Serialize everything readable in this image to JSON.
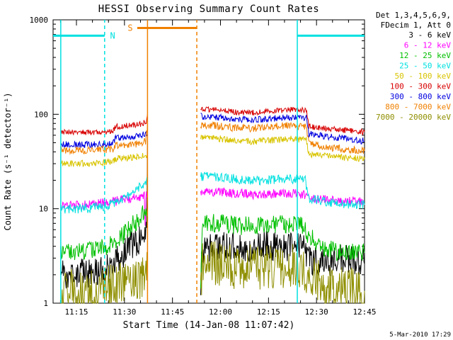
{
  "title": "HESSI Observing Summary Count Rates",
  "xlabel": "Start Time (14-Jan-08 11:07:42)",
  "ylabel": "Count Rate (s⁻¹ detector⁻¹)",
  "timestamp": "5-Mar-2010 17:29",
  "legend": {
    "header_line1": "Det 1,3,4,5,6,9,",
    "header_line2": "FDecim 1, Att 0",
    "entries": [
      {
        "label": "3 - 6 keV",
        "color": "#000000"
      },
      {
        "label": "6 - 12 keV",
        "color": "#FF00FF"
      },
      {
        "label": "12 - 25 keV",
        "color": "#00C000"
      },
      {
        "label": "25 - 50 keV",
        "color": "#00E0E0"
      },
      {
        "label": "50 - 100 keV",
        "color": "#D8C400"
      },
      {
        "label": "100 - 300 keV",
        "color": "#D80000"
      },
      {
        "label": "300 - 800 keV",
        "color": "#0000E0"
      },
      {
        "label": "800 - 7000 keV",
        "color": "#F08000"
      },
      {
        "label": "7000 - 20000 keV",
        "color": "#8E8E00"
      }
    ]
  },
  "chart_data": {
    "type": "line",
    "y_scale": "log",
    "x_axis": {
      "domain_min": 7.7,
      "domain_max": 105,
      "minor_tick_step_min": 5,
      "major_ticks": [
        {
          "x": 15,
          "label": "11:15"
        },
        {
          "x": 30,
          "label": "11:30"
        },
        {
          "x": 45,
          "label": "11:45"
        },
        {
          "x": 60,
          "label": "12:00"
        },
        {
          "x": 75,
          "label": "12:15"
        },
        {
          "x": 90,
          "label": "12:30"
        },
        {
          "x": 105,
          "label": "12:45"
        }
      ]
    },
    "y_axis": {
      "domain": [
        1,
        1000
      ],
      "major_ticks": [
        {
          "v": 1,
          "label": "1"
        },
        {
          "v": 10,
          "label": "10"
        },
        {
          "v": 100,
          "label": "100"
        },
        {
          "v": 1000,
          "label": "1000"
        }
      ]
    },
    "series": [
      {
        "name": "3 - 6 keV",
        "color": "#000000",
        "noise": 0.16,
        "segments": [
          [
            [
              10.2,
              2.0
            ],
            [
              15,
              2.1
            ],
            [
              22,
              2.1
            ],
            [
              26,
              2.4
            ],
            [
              29,
              3.2
            ],
            [
              32,
              4.2
            ],
            [
              35,
              4.8
            ],
            [
              36.9,
              5.2
            ],
            [
              37.2,
              55
            ]
          ],
          [
            [
              53.8,
              1.15
            ],
            [
              54.2,
              3.6
            ],
            [
              60,
              4.0
            ],
            [
              67,
              3.8
            ],
            [
              74,
              4.2
            ],
            [
              80,
              3.8
            ],
            [
              86,
              4.0
            ],
            [
              87,
              3.0
            ],
            [
              92,
              2.6
            ],
            [
              97,
              3.0
            ],
            [
              105,
              2.6
            ]
          ]
        ]
      },
      {
        "name": "6 - 12 keV",
        "color": "#FF00FF",
        "noise": 0.05,
        "segments": [
          [
            [
              10.2,
              11
            ],
            [
              18,
              11
            ],
            [
              24,
              11.5
            ],
            [
              27,
              12
            ],
            [
              30,
              12.5
            ],
            [
              34,
              13
            ],
            [
              36.2,
              13.5
            ],
            [
              36.45,
              6
            ],
            [
              36.7,
              13.8
            ],
            [
              37.2,
              14
            ]
          ],
          [
            [
              53.8,
              15.5
            ],
            [
              60,
              15
            ],
            [
              66,
              14.5
            ],
            [
              72,
              14
            ],
            [
              78,
              14.5
            ],
            [
              84,
              14.5
            ],
            [
              86.5,
              14
            ],
            [
              87.5,
              13
            ],
            [
              92,
              12.5
            ],
            [
              98,
              12
            ],
            [
              105,
              12
            ]
          ]
        ]
      },
      {
        "name": "12 - 25 keV",
        "color": "#00C000",
        "noise": 0.1,
        "segments": [
          [
            [
              10.2,
              3.6
            ],
            [
              18,
              3.6
            ],
            [
              24,
              3.9
            ],
            [
              27,
              4.5
            ],
            [
              30,
              5.5
            ],
            [
              33,
              7
            ],
            [
              35.5,
              8.5
            ],
            [
              37.2,
              10
            ]
          ],
          [
            [
              53.8,
              1.2
            ],
            [
              54.3,
              7.2
            ],
            [
              60,
              7.0
            ],
            [
              66,
              6.6
            ],
            [
              72,
              6.6
            ],
            [
              78,
              6.9
            ],
            [
              84,
              6.9
            ],
            [
              86.5,
              6.5
            ],
            [
              87.5,
              5.0
            ],
            [
              90,
              4.5
            ],
            [
              93,
              3.8
            ],
            [
              97,
              3.4
            ],
            [
              105,
              3.4
            ]
          ]
        ]
      },
      {
        "name": "25 - 50 keV",
        "color": "#00E0E0",
        "noise": 0.05,
        "segments": [
          [
            [
              10.2,
              10
            ],
            [
              18,
              10
            ],
            [
              24,
              10.5
            ],
            [
              27,
              11.5
            ],
            [
              30,
              13
            ],
            [
              33,
              15.5
            ],
            [
              35.5,
              17.5
            ],
            [
              37.2,
              20
            ]
          ],
          [
            [
              53.8,
              22
            ],
            [
              60,
              21.5
            ],
            [
              66,
              20.5
            ],
            [
              72,
              20
            ],
            [
              78,
              20.5
            ],
            [
              84,
              20.5
            ],
            [
              86.5,
              20
            ],
            [
              87.5,
              13
            ],
            [
              92,
              12
            ],
            [
              98,
              11.3
            ],
            [
              105,
              11
            ]
          ]
        ]
      },
      {
        "name": "50 - 100 keV",
        "color": "#D8C400",
        "noise": 0.035,
        "segments": [
          [
            [
              10.2,
              30.5
            ],
            [
              16,
              30
            ],
            [
              22,
              30.5
            ],
            [
              26.4,
              31.5
            ],
            [
              27.2,
              34
            ],
            [
              31,
              34.5
            ],
            [
              35,
              35.5
            ],
            [
              37.2,
              37
            ]
          ],
          [
            [
              53.8,
              57
            ],
            [
              58,
              56
            ],
            [
              64,
              53
            ],
            [
              70,
              51.5
            ],
            [
              76,
              53
            ],
            [
              82,
              55
            ],
            [
              86.8,
              54
            ],
            [
              87.6,
              38
            ],
            [
              92,
              36.5
            ],
            [
              98,
              35
            ],
            [
              105,
              33.5
            ]
          ]
        ]
      },
      {
        "name": "100 - 300 keV",
        "color": "#D80000",
        "noise": 0.03,
        "segments": [
          [
            [
              10.2,
              65
            ],
            [
              16,
              64
            ],
            [
              22,
              65
            ],
            [
              26.4,
              66
            ],
            [
              27.2,
              74
            ],
            [
              31,
              76
            ],
            [
              35,
              79
            ],
            [
              36.8,
              83
            ],
            [
              37.2,
              100
            ]
          ],
          [
            [
              53.8,
              113
            ],
            [
              58,
              112
            ],
            [
              64,
              106
            ],
            [
              70,
              104
            ],
            [
              76,
              108
            ],
            [
              82,
              112
            ],
            [
              86.8,
              110
            ],
            [
              87.6,
              74
            ],
            [
              92,
              71
            ],
            [
              98,
              68
            ],
            [
              105,
              65
            ]
          ]
        ]
      },
      {
        "name": "300 - 800 keV",
        "color": "#0000E0",
        "noise": 0.035,
        "segments": [
          [
            [
              10.2,
              48
            ],
            [
              16,
              47.5
            ],
            [
              22,
              48
            ],
            [
              26.4,
              49
            ],
            [
              27.2,
              56
            ],
            [
              31,
              57.5
            ],
            [
              35,
              59.5
            ],
            [
              37.2,
              63
            ]
          ],
          [
            [
              53.8,
              95
            ],
            [
              58,
              94
            ],
            [
              64,
              89
            ],
            [
              70,
              87
            ],
            [
              76,
              90
            ],
            [
              82,
              93
            ],
            [
              86.8,
              92
            ],
            [
              87.6,
              62
            ],
            [
              92,
              59
            ],
            [
              98,
              56
            ],
            [
              105,
              52
            ]
          ]
        ]
      },
      {
        "name": "800 - 7000 keV",
        "color": "#F08000",
        "noise": 0.04,
        "segments": [
          [
            [
              10.2,
              42
            ],
            [
              16,
              41.5
            ],
            [
              22,
              42
            ],
            [
              26.4,
              43
            ],
            [
              27.2,
              46
            ],
            [
              31,
              47
            ],
            [
              35,
              49
            ],
            [
              36.6,
              52
            ],
            [
              37.2,
              78
            ]
          ],
          [
            [
              53.8,
              77
            ],
            [
              58,
              76
            ],
            [
              64,
              72
            ],
            [
              70,
              71
            ],
            [
              76,
              74
            ],
            [
              82,
              76
            ],
            [
              86.8,
              74
            ],
            [
              87.6,
              49
            ],
            [
              92,
              46
            ],
            [
              98,
              43
            ],
            [
              105,
              41
            ]
          ]
        ]
      },
      {
        "name": "7000 - 20000 keV",
        "color": "#8E8E00",
        "noise": 0.24,
        "segments": [
          [
            [
              10.2,
              1.35
            ],
            [
              16,
              1.35
            ],
            [
              22,
              1.4
            ],
            [
              27,
              1.6
            ],
            [
              31,
              1.7
            ],
            [
              35,
              1.8
            ],
            [
              37.2,
              2.2
            ]
          ],
          [
            [
              53.8,
              1.05
            ],
            [
              54.4,
              2.6
            ],
            [
              60,
              2.6
            ],
            [
              66,
              2.4
            ],
            [
              72,
              2.4
            ],
            [
              78,
              2.5
            ],
            [
              84,
              2.5
            ],
            [
              87,
              2.2
            ],
            [
              90,
              1.9
            ],
            [
              93,
              1.6
            ],
            [
              97,
              1.4
            ],
            [
              105,
              1.35
            ]
          ]
        ]
      }
    ],
    "overlays": {
      "night_bars": [
        {
          "y": 680,
          "x_from": 7.7,
          "x_to": 23.8,
          "color": "#00E0E0"
        },
        {
          "y": 680,
          "x_from": 84,
          "x_to": 105,
          "color": "#00E0E0"
        }
      ],
      "saa_bars": [
        {
          "y": 820,
          "x_from": 34,
          "x_to": 52.6,
          "color": "#F08000"
        }
      ],
      "vlines": [
        {
          "x": 10.1,
          "color": "#00E0E0",
          "dashed": false
        },
        {
          "x": 23.8,
          "color": "#00E0E0",
          "dashed": true
        },
        {
          "x": 37.2,
          "color": "#F08000",
          "dashed": false
        },
        {
          "x": 52.6,
          "color": "#F08000",
          "dashed": true
        },
        {
          "x": 84,
          "color": "#00E0E0",
          "dashed": false
        }
      ],
      "labels": [
        {
          "text": "N",
          "x": 26.3,
          "y": 680,
          "color": "#00E0E0"
        },
        {
          "text": "S",
          "x": 31.8,
          "y": 820,
          "color": "#F08000"
        }
      ]
    }
  }
}
